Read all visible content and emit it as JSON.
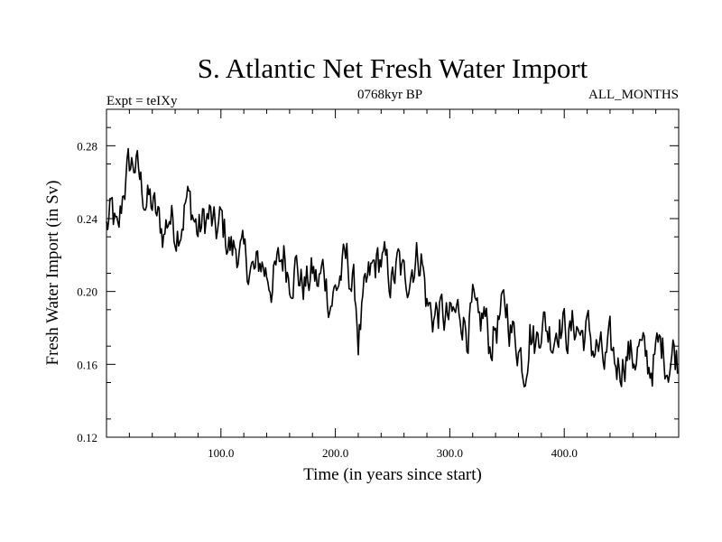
{
  "chart_data": {
    "type": "line",
    "title": "S. Atlantic Net Fresh Water Import",
    "subtitle_left": "Expt = teIXy",
    "subtitle_center": "0768kyr BP",
    "subtitle_right": "ALL_MONTHS",
    "xlabel": "Time (in years since start)",
    "ylabel": "Fresh Water Import (in Sv)",
    "xlim": [
      0,
      500
    ],
    "ylim": [
      0.12,
      0.3
    ],
    "xticks": [
      100,
      200,
      300,
      400
    ],
    "xtick_labels": [
      "100.0",
      "200.0",
      "300.0",
      "400.0"
    ],
    "yticks": [
      0.12,
      0.16,
      0.2,
      0.24,
      0.28
    ],
    "ytick_labels": [
      "0.12",
      "0.16",
      "0.20",
      "0.24",
      "0.28"
    ],
    "grid": false,
    "series": [
      {
        "name": "Net Fresh Water Import",
        "color": "#000000",
        "x": [
          0,
          5,
          10,
          15,
          20,
          25,
          30,
          35,
          40,
          45,
          50,
          55,
          60,
          65,
          70,
          75,
          80,
          85,
          90,
          95,
          100,
          105,
          110,
          115,
          120,
          125,
          130,
          135,
          140,
          145,
          150,
          155,
          160,
          165,
          170,
          175,
          180,
          185,
          190,
          195,
          200,
          205,
          210,
          215,
          218,
          220,
          225,
          230,
          235,
          240,
          245,
          250,
          255,
          260,
          265,
          270,
          275,
          280,
          285,
          290,
          295,
          300,
          305,
          310,
          315,
          320,
          325,
          330,
          335,
          340,
          345,
          350,
          355,
          360,
          365,
          370,
          375,
          380,
          385,
          390,
          395,
          400,
          405,
          410,
          415,
          420,
          425,
          430,
          435,
          440,
          445,
          450,
          455,
          460,
          465,
          470,
          475,
          480,
          485,
          490,
          495,
          499
        ],
        "values": [
          0.235,
          0.242,
          0.226,
          0.258,
          0.268,
          0.271,
          0.258,
          0.251,
          0.247,
          0.238,
          0.232,
          0.243,
          0.235,
          0.24,
          0.251,
          0.244,
          0.232,
          0.238,
          0.241,
          0.23,
          0.238,
          0.229,
          0.222,
          0.225,
          0.215,
          0.214,
          0.208,
          0.217,
          0.21,
          0.206,
          0.212,
          0.221,
          0.21,
          0.216,
          0.205,
          0.204,
          0.21,
          0.203,
          0.212,
          0.196,
          0.2,
          0.21,
          0.216,
          0.204,
          0.195,
          0.175,
          0.192,
          0.206,
          0.214,
          0.218,
          0.21,
          0.205,
          0.214,
          0.205,
          0.213,
          0.219,
          0.221,
          0.193,
          0.187,
          0.189,
          0.185,
          0.183,
          0.186,
          0.19,
          0.18,
          0.19,
          0.175,
          0.188,
          0.17,
          0.181,
          0.186,
          0.19,
          0.177,
          0.172,
          0.158,
          0.182,
          0.17,
          0.186,
          0.18,
          0.176,
          0.186,
          0.18,
          0.176,
          0.183,
          0.176,
          0.178,
          0.17,
          0.168,
          0.158,
          0.167,
          0.16,
          0.162,
          0.168,
          0.163,
          0.17,
          0.162,
          0.158,
          0.165,
          0.17,
          0.162,
          0.168,
          0.164
        ]
      }
    ]
  }
}
